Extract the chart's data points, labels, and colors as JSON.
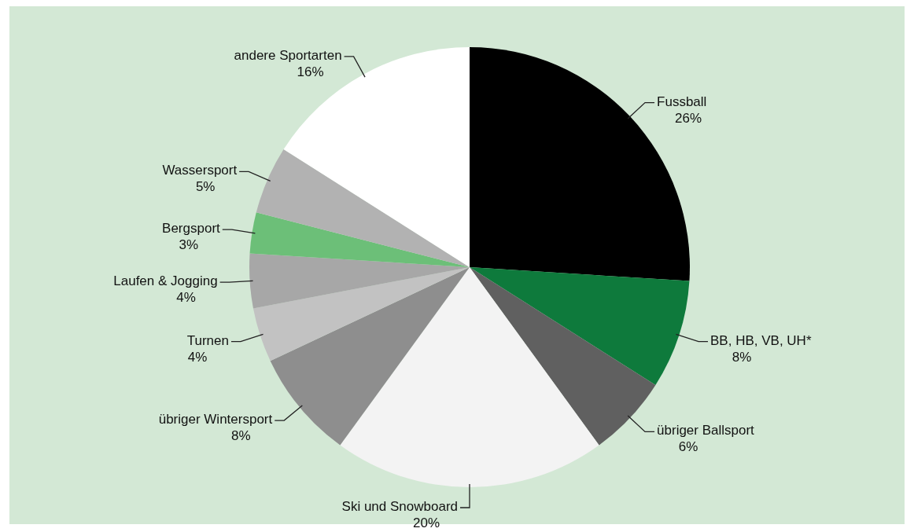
{
  "chart_data": {
    "type": "pie",
    "categories": [
      "Fussball",
      "BB, HB, VB, UH*",
      "übriger Ballsport",
      "Ski und Snowboard",
      "übriger Wintersport",
      "Turnen",
      "Laufen & Jogging",
      "Bergsport",
      "Wassersport",
      "andere Sportarten"
    ],
    "values": [
      26,
      8,
      6,
      20,
      8,
      4,
      4,
      3,
      5,
      16
    ],
    "value_labels": [
      "26%",
      "8%",
      "6%",
      "20%",
      "8%",
      "4%",
      "4%",
      "3%",
      "5%",
      "16%"
    ],
    "colors": [
      "#000000",
      "#0e7a3c",
      "#606060",
      "#f3f3f3",
      "#8e8e8e",
      "#c2c2c2",
      "#a7a7a7",
      "#6cbf78",
      "#b2b2b2",
      "#ffffff"
    ]
  }
}
